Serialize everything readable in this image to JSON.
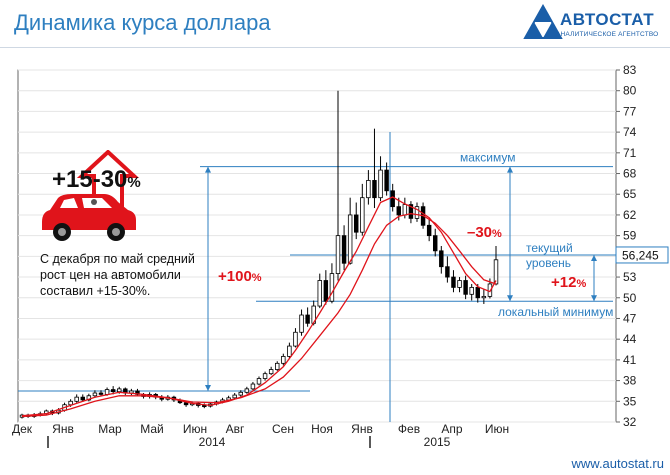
{
  "header": {
    "title": "Динамика курса доллара",
    "logo_text": "АВТОСТАТ",
    "logo_sub": "АНАЛИТИЧЕСКОЕ АГЕНТСТВО"
  },
  "footer": {
    "url": "www.autostat.ru"
  },
  "infobox": {
    "percent_main": "+15-30",
    "percent_sign": "%",
    "caption": "С декабря по май средний рост цен на автомобили составил +15-30%."
  },
  "colors": {
    "accent": "#2e7fc0",
    "red": "#e0141b",
    "candle_up": "#ffffff",
    "candle_down": "#000000"
  },
  "chart_data": {
    "type": "candlestick",
    "title": "Динамика курса доллара",
    "ylim": [
      32,
      83
    ],
    "yticks": [
      32,
      35,
      38,
      41,
      44,
      47,
      50,
      53,
      56,
      59,
      62,
      65,
      68,
      71,
      74,
      77,
      80,
      83
    ],
    "x_month_labels": [
      "Дек",
      "Янв",
      "Мар",
      "Май",
      "Июн",
      "Авг",
      "Сен",
      "Ноя",
      "Янв",
      "Фев",
      "Апр",
      "Июн"
    ],
    "x_year_labels": [
      "2014",
      "2015"
    ],
    "current_value_label": "56,245",
    "annotations": {
      "max_label": "максимум",
      "max_value": 69,
      "current_label_line1": "текущий",
      "current_label_line2": "уровень",
      "current_value": 56.2,
      "min_label": "локальный минимум",
      "min_value": 49.5,
      "base_value": 36.5,
      "pct_up": "+100",
      "pct_down": "–30",
      "pct_recent": "+12",
      "pct_sign": "%"
    },
    "candles": [
      [
        32.7,
        33.0,
        32.5,
        33.2
      ],
      [
        33.0,
        32.8,
        32.6,
        33.2
      ],
      [
        32.8,
        33.0,
        32.6,
        33.3
      ],
      [
        33.0,
        33.2,
        32.8,
        33.5
      ],
      [
        33.2,
        33.6,
        33.0,
        33.8
      ],
      [
        33.6,
        33.3,
        33.0,
        33.8
      ],
      [
        33.3,
        33.7,
        33.1,
        34.0
      ],
      [
        33.7,
        34.5,
        33.5,
        34.8
      ],
      [
        34.5,
        35.0,
        34.2,
        35.3
      ],
      [
        35.0,
        35.6,
        34.8,
        36.0
      ],
      [
        35.6,
        35.2,
        34.9,
        36.0
      ],
      [
        35.2,
        35.8,
        35.0,
        36.1
      ],
      [
        35.8,
        36.2,
        35.5,
        36.6
      ],
      [
        36.2,
        36.0,
        35.7,
        36.6
      ],
      [
        36.0,
        36.7,
        35.8,
        37.0
      ],
      [
        36.7,
        36.4,
        36.0,
        37.2
      ],
      [
        36.4,
        36.8,
        36.1,
        37.1
      ],
      [
        36.8,
        36.2,
        35.9,
        37.0
      ],
      [
        36.2,
        36.5,
        35.9,
        36.8
      ],
      [
        36.5,
        36.0,
        35.7,
        36.8
      ],
      [
        36.0,
        35.7,
        35.4,
        36.2
      ],
      [
        35.7,
        36.0,
        35.4,
        36.3
      ],
      [
        36.0,
        35.6,
        35.3,
        36.2
      ],
      [
        35.6,
        35.3,
        35.0,
        35.9
      ],
      [
        35.3,
        35.6,
        35.1,
        35.9
      ],
      [
        35.6,
        35.2,
        34.9,
        35.8
      ],
      [
        35.2,
        34.8,
        34.6,
        35.4
      ],
      [
        34.8,
        34.5,
        34.2,
        35.0
      ],
      [
        34.5,
        34.7,
        34.3,
        35.0
      ],
      [
        34.7,
        34.4,
        34.1,
        34.9
      ],
      [
        34.4,
        34.3,
        34.0,
        34.7
      ],
      [
        34.3,
        34.6,
        34.1,
        34.9
      ],
      [
        34.6,
        34.9,
        34.4,
        35.1
      ],
      [
        34.9,
        35.2,
        34.7,
        35.5
      ],
      [
        35.2,
        35.5,
        35.0,
        35.8
      ],
      [
        35.5,
        35.9,
        35.3,
        36.2
      ],
      [
        35.9,
        36.3,
        35.7,
        36.6
      ],
      [
        36.3,
        36.8,
        36.1,
        37.1
      ],
      [
        36.8,
        37.5,
        36.6,
        37.8
      ],
      [
        37.5,
        38.3,
        37.3,
        38.6
      ],
      [
        38.3,
        39.0,
        38.0,
        39.3
      ],
      [
        39.0,
        39.6,
        38.8,
        40.0
      ],
      [
        39.6,
        40.5,
        39.4,
        40.8
      ],
      [
        40.5,
        41.5,
        40.2,
        41.9
      ],
      [
        41.5,
        43.0,
        41.2,
        43.5
      ],
      [
        43.0,
        45.0,
        42.8,
        45.6
      ],
      [
        45.0,
        47.5,
        44.5,
        48.3
      ],
      [
        47.5,
        46.3,
        45.8,
        48.6
      ],
      [
        46.3,
        48.8,
        46.0,
        49.6
      ],
      [
        48.8,
        52.5,
        48.5,
        53.5
      ],
      [
        52.5,
        49.5,
        49.0,
        54.0
      ],
      [
        49.5,
        53.5,
        49.2,
        55.0
      ],
      [
        53.5,
        59.0,
        52.5,
        80.0
      ],
      [
        59.0,
        55.0,
        54.0,
        60.5
      ],
      [
        55.0,
        62.0,
        54.8,
        64.5
      ],
      [
        62.0,
        59.5,
        58.5,
        63.8
      ],
      [
        59.5,
        64.5,
        59.0,
        66.5
      ],
      [
        64.5,
        67.0,
        63.5,
        68.5
      ],
      [
        67.0,
        64.5,
        63.0,
        74.5
      ],
      [
        64.5,
        68.5,
        64.0,
        70.5
      ],
      [
        68.5,
        65.5,
        64.8,
        69.6
      ],
      [
        65.5,
        63.2,
        62.5,
        66.5
      ],
      [
        63.2,
        62.0,
        61.2,
        64.5
      ],
      [
        62.0,
        63.5,
        61.5,
        64.5
      ],
      [
        63.5,
        61.5,
        60.8,
        64.0
      ],
      [
        61.5,
        63.2,
        61.0,
        63.8
      ],
      [
        63.2,
        60.5,
        60.0,
        63.8
      ],
      [
        60.5,
        59.0,
        58.2,
        61.5
      ],
      [
        59.0,
        56.8,
        56.0,
        60.0
      ],
      [
        56.8,
        54.5,
        53.5,
        57.5
      ],
      [
        54.5,
        53.0,
        52.2,
        56.0
      ],
      [
        53.0,
        51.5,
        50.8,
        54.0
      ],
      [
        51.5,
        52.5,
        50.8,
        53.0
      ],
      [
        52.5,
        50.5,
        49.8,
        53.2
      ],
      [
        50.5,
        51.5,
        49.6,
        52.0
      ],
      [
        51.5,
        50.0,
        49.3,
        52.0
      ],
      [
        50.0,
        50.2,
        49.1,
        51.2
      ],
      [
        50.2,
        52.0,
        49.9,
        52.8
      ],
      [
        52.0,
        55.5,
        51.8,
        57.5
      ]
    ],
    "ma_fast": [
      [
        0,
        32.9
      ],
      [
        4,
        33.2
      ],
      [
        8,
        34.4
      ],
      [
        12,
        35.6
      ],
      [
        16,
        36.3
      ],
      [
        20,
        36.0
      ],
      [
        24,
        35.5
      ],
      [
        28,
        34.7
      ],
      [
        31,
        34.4
      ],
      [
        34,
        35.0
      ],
      [
        37,
        35.9
      ],
      [
        40,
        37.7
      ],
      [
        43,
        40.0
      ],
      [
        45,
        42.4
      ],
      [
        47,
        45.0
      ],
      [
        49,
        47.8
      ],
      [
        51,
        50.7
      ],
      [
        53,
        53.8
      ],
      [
        55,
        56.7
      ],
      [
        57,
        60.3
      ],
      [
        59,
        63.8
      ],
      [
        61,
        64.6
      ],
      [
        63,
        63.6
      ],
      [
        65,
        62.8
      ],
      [
        67,
        61.6
      ],
      [
        69,
        59.5
      ],
      [
        71,
        56.5
      ],
      [
        73,
        53.5
      ],
      [
        75,
        51.6
      ],
      [
        77,
        50.9
      ],
      [
        78,
        52.5
      ]
    ],
    "ma_slow": [
      [
        0,
        32.8
      ],
      [
        4,
        33.0
      ],
      [
        8,
        33.9
      ],
      [
        12,
        35.0
      ],
      [
        16,
        35.8
      ],
      [
        20,
        35.8
      ],
      [
        24,
        35.5
      ],
      [
        28,
        34.9
      ],
      [
        32,
        34.8
      ],
      [
        36,
        35.5
      ],
      [
        40,
        36.8
      ],
      [
        43,
        38.5
      ],
      [
        46,
        41.2
      ],
      [
        49,
        44.5
      ],
      [
        52,
        47.8
      ],
      [
        54,
        50.5
      ],
      [
        56,
        54.0
      ],
      [
        58,
        57.8
      ],
      [
        60,
        60.5
      ],
      [
        62,
        61.8
      ],
      [
        64,
        62.2
      ],
      [
        66,
        61.9
      ],
      [
        68,
        60.8
      ],
      [
        70,
        59.0
      ],
      [
        72,
        56.8
      ],
      [
        74,
        54.5
      ],
      [
        76,
        52.6
      ],
      [
        78,
        52.0
      ]
    ]
  }
}
